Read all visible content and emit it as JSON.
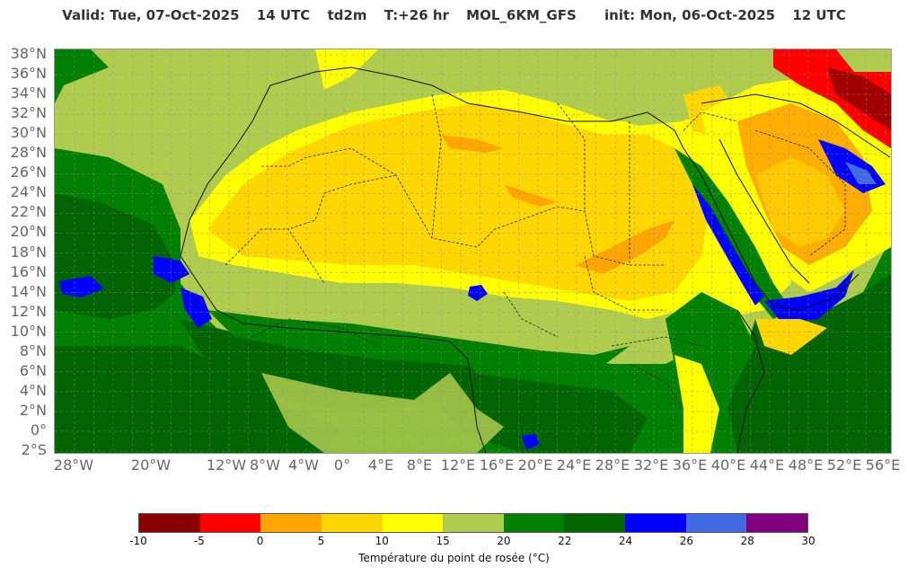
{
  "header": {
    "valid": "Valid: Tue, 07-Oct-2025",
    "hour": "14 UTC",
    "param": "td2m",
    "lead": "T:+26 hr",
    "model": "MOL_6KM_GFS",
    "init": "init: Mon, 06-Oct-2025",
    "init_hour": "12 UTC"
  },
  "axes": {
    "lat_labels": [
      "38°N",
      "36°N",
      "34°N",
      "32°N",
      "30°N",
      "28°N",
      "26°N",
      "24°N",
      "22°N",
      "20°N",
      "18°N",
      "16°N",
      "14°N",
      "12°N",
      "10°N",
      "8°N",
      "6°N",
      "4°N",
      "2°N",
      "0°",
      "2°S"
    ],
    "lon_labels": [
      "28°W",
      "20°W",
      "12°W",
      "8°W",
      "4°W",
      "0°",
      "4°E",
      "8°E",
      "12°E",
      "16°E",
      "20°E",
      "24°E",
      "28°E",
      "32°E",
      "36°E",
      "40°E",
      "44°E",
      "48°E",
      "52°E",
      "56°E"
    ]
  },
  "colorbar": {
    "title": "Température du point de rosée (°C)",
    "ticks": [
      "-10",
      "-5",
      "0",
      "5",
      "10",
      "15",
      "20",
      "22",
      "24",
      "26",
      "28",
      "30"
    ],
    "colors": [
      "#8b0000",
      "#ff0000",
      "#ffa500",
      "#ffd700",
      "#ffff00",
      "#b0cc4f",
      "#008000",
      "#006400",
      "#0000ff",
      "#4169e1",
      "#800080"
    ]
  },
  "map": {
    "region": "North Africa & Arabian Peninsula"
  }
}
